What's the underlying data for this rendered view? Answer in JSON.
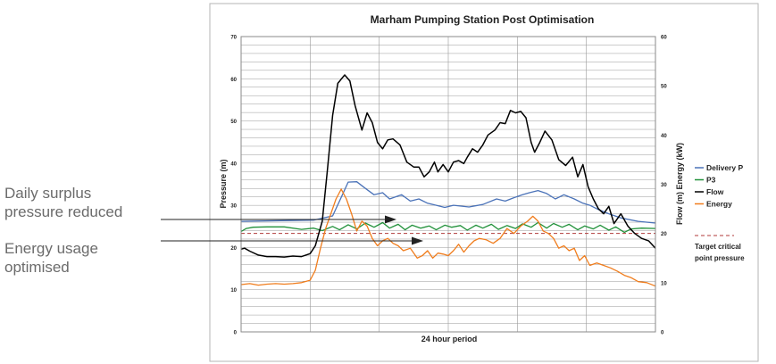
{
  "annotations": {
    "surplus_line1": "Daily surplus",
    "surplus_line2": "pressure reduced",
    "energy_line1": "Energy usage",
    "energy_line2": "optimised"
  },
  "colors": {
    "delivery_p": "#4a72b8",
    "p3": "#21913a",
    "flow": "#000000",
    "energy": "#f07d1d",
    "target": "#b03a3a",
    "grid": "#9a9a9a",
    "annotation_text": "#6b6b6b"
  },
  "chart_data": {
    "type": "line",
    "title": "Marham Pumping Station Post Optimisation",
    "xlabel": "24 hour period",
    "ylabel_left": "Pressure (m)",
    "ylabel_right": "Flow (m) Energy (kW)",
    "ylim_left": [
      0,
      70
    ],
    "ylim_right": [
      0,
      60
    ],
    "yticks_left": [
      "0",
      "10",
      "20",
      "30",
      "40",
      "50",
      "60",
      "70"
    ],
    "yticks_right": [
      "0",
      "10",
      "20",
      "30",
      "40",
      "50",
      "60"
    ],
    "x_range": [
      0,
      24
    ],
    "x_gridlines": [
      4,
      8,
      12,
      16,
      20
    ],
    "grid": true,
    "legend_position": "right",
    "target_label_line1": "Target critical",
    "target_label_line2": "point pressure",
    "target_value": 20,
    "series": [
      {
        "name": "Delivery P",
        "axis": "left",
        "x": [
          0,
          4.2,
          5.3,
          5.7,
          6.2,
          6.7,
          7.2,
          7.7,
          8.2,
          8.6,
          9.3,
          9.8,
          10.3,
          10.8,
          11.3,
          11.8,
          12.3,
          13.2,
          14,
          14.8,
          15.3,
          15.8,
          16.3,
          16.7,
          17.2,
          17.7,
          18.2,
          18.7,
          19.3,
          19.8,
          20.2,
          20.7,
          21.3,
          22,
          23,
          24
        ],
        "y": [
          26.2,
          26.5,
          27.5,
          31,
          35.5,
          35.6,
          34,
          32.5,
          33,
          31.5,
          32.5,
          31,
          31.5,
          30.5,
          30,
          29.5,
          30,
          29.6,
          30.2,
          31.5,
          31,
          31.8,
          32.5,
          33,
          33.5,
          32.8,
          31.5,
          32.5,
          31.5,
          30.5,
          30,
          29,
          28,
          27,
          26.2,
          25.8
        ]
      },
      {
        "name": "P3",
        "axis": "left",
        "x": [
          0,
          0.3,
          0.7,
          1.5,
          2.5,
          3.5,
          4.2,
          4.7,
          5.3,
          5.7,
          6.2,
          6.7,
          7.2,
          7.7,
          8.2,
          8.6,
          9.1,
          9.5,
          9.9,
          10.4,
          10.9,
          11.3,
          11.8,
          12.2,
          12.7,
          13.1,
          13.6,
          14,
          14.5,
          14.9,
          15.4,
          15.9,
          16.3,
          16.8,
          17.2,
          17.7,
          18.1,
          18.6,
          19,
          19.5,
          19.9,
          20.4,
          20.8,
          21.3,
          21.7,
          22.2,
          22.6,
          23.2,
          24
        ],
        "y": [
          23.8,
          24.5,
          24.8,
          24.9,
          24.9,
          24.3,
          24.6,
          24,
          25,
          24.2,
          25.4,
          24.4,
          25.8,
          24.8,
          25.9,
          24.6,
          25.5,
          24.2,
          25.3,
          24.6,
          25.1,
          24.2,
          25.3,
          24.8,
          25.2,
          24.1,
          25.3,
          24.6,
          25.5,
          24.3,
          25.2,
          24.5,
          25.6,
          24.8,
          25.9,
          24.6,
          25.7,
          24.8,
          25.5,
          24.2,
          25.1,
          24.4,
          25.3,
          24.1,
          24.9,
          23.6,
          24.4,
          24.6,
          24.5
        ]
      },
      {
        "name": "Flow",
        "axis": "right",
        "x": [
          0,
          0.2,
          0.5,
          1,
          1.5,
          2,
          2.5,
          3,
          3.5,
          4,
          4.3,
          4.7,
          5,
          5.3,
          5.6,
          6,
          6.3,
          6.6,
          7,
          7.3,
          7.6,
          7.9,
          8.2,
          8.5,
          8.8,
          9.2,
          9.6,
          10,
          10.3,
          10.6,
          10.9,
          11.2,
          11.4,
          11.7,
          12,
          12.3,
          12.6,
          12.9,
          13.1,
          13.4,
          13.7,
          14,
          14.3,
          14.7,
          15,
          15.3,
          15.6,
          15.9,
          16.2,
          16.5,
          16.8,
          17,
          17.3,
          17.6,
          18,
          18.4,
          18.8,
          19.2,
          19.5,
          19.8,
          20.1,
          20.4,
          20.7,
          21,
          21.3,
          21.6,
          22,
          22.4,
          22.8,
          23.2,
          23.6,
          24
        ],
        "y": [
          16.8,
          17,
          16.4,
          15.6,
          15.3,
          15.3,
          15.2,
          15.4,
          15.3,
          15.9,
          17.5,
          22.5,
          33,
          44,
          50.5,
          52.2,
          51,
          46,
          41,
          44.5,
          42.5,
          38.5,
          37.2,
          39,
          39.2,
          38,
          34.5,
          33.5,
          33.5,
          31.5,
          32.5,
          34.5,
          32.5,
          34,
          32.5,
          34.5,
          34.8,
          34.2,
          35.5,
          37.2,
          36.5,
          38,
          40,
          41,
          42.5,
          42.3,
          45,
          44.5,
          44.8,
          43.5,
          38.5,
          36.5,
          38.5,
          40.8,
          39,
          35,
          33.8,
          35.5,
          31.5,
          34,
          29.5,
          27,
          25,
          24,
          25.5,
          22,
          24,
          21.5,
          20,
          19,
          18.5,
          17
        ]
      },
      {
        "name": "Energy",
        "axis": "right",
        "x": [
          0,
          0.5,
          1,
          1.5,
          2,
          2.5,
          3,
          3.5,
          4,
          4.3,
          4.6,
          4.9,
          5.2,
          5.5,
          5.8,
          6.1,
          6.4,
          6.7,
          7,
          7.3,
          7.6,
          7.9,
          8.2,
          8.5,
          8.8,
          9.1,
          9.4,
          9.8,
          10.2,
          10.5,
          10.8,
          11.1,
          11.4,
          11.7,
          12,
          12.3,
          12.6,
          12.9,
          13.2,
          13.5,
          13.8,
          14.2,
          14.6,
          15,
          15.4,
          15.8,
          16.2,
          16.6,
          16.9,
          17.2,
          17.5,
          17.8,
          18.1,
          18.4,
          18.7,
          19,
          19.3,
          19.6,
          19.9,
          20.2,
          20.6,
          21,
          21.4,
          21.8,
          22.2,
          22.6,
          23,
          23.5,
          24
        ],
        "y": [
          9.6,
          9.8,
          9.5,
          9.7,
          9.8,
          9.7,
          9.8,
          10,
          10.5,
          12.5,
          17,
          21,
          24,
          27,
          29,
          27,
          24,
          20.5,
          22.5,
          21.5,
          19,
          17.5,
          18.5,
          19,
          18,
          17.5,
          16.5,
          17,
          15,
          15.5,
          16.5,
          15,
          16,
          15.8,
          15.5,
          16.5,
          17.8,
          16.2,
          17.5,
          18.5,
          19,
          18.7,
          18,
          19,
          21,
          20,
          21.5,
          22.5,
          23.5,
          22.5,
          20.5,
          20,
          19,
          17,
          17.5,
          16.5,
          17,
          14.5,
          15.5,
          13.5,
          14,
          13.5,
          13,
          12.3,
          11.5,
          11,
          10.2,
          10,
          9.3
        ]
      }
    ]
  }
}
